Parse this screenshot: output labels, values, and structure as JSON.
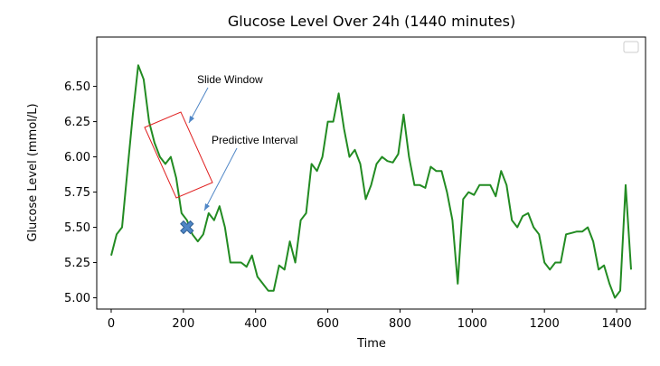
{
  "chart_data": {
    "type": "line",
    "title": "Glucose Level Over 24h (1440 minutes)",
    "xlabel": "Time",
    "ylabel": "Glucose Level (mmol/L)",
    "xlim": [
      -40,
      1480
    ],
    "ylim": [
      4.92,
      6.85
    ],
    "xticks": [
      0,
      200,
      400,
      600,
      800,
      1000,
      1200,
      1400
    ],
    "yticks": [
      5.0,
      5.25,
      5.5,
      5.75,
      6.0,
      6.25,
      6.5
    ],
    "ytick_labels": [
      "5.00",
      "5.25",
      "5.50",
      "5.75",
      "6.00",
      "6.25",
      "6.50"
    ],
    "grid": false,
    "legend": "top-right (empty)",
    "series": [
      {
        "color": "#228B22",
        "x": [
          0,
          15,
          30,
          45,
          60,
          75,
          90,
          105,
          120,
          135,
          150,
          165,
          180,
          195,
          210,
          225,
          240,
          255,
          270,
          285,
          300,
          315,
          330,
          345,
          360,
          375,
          390,
          405,
          420,
          435,
          450,
          465,
          480,
          495,
          510,
          525,
          540,
          555,
          570,
          585,
          600,
          615,
          630,
          645,
          660,
          675,
          690,
          705,
          720,
          735,
          750,
          765,
          780,
          795,
          810,
          825,
          840,
          855,
          870,
          885,
          900,
          915,
          930,
          945,
          960,
          975,
          990,
          1005,
          1020,
          1035,
          1050,
          1065,
          1080,
          1095,
          1110,
          1125,
          1140,
          1155,
          1170,
          1185,
          1200,
          1215,
          1230,
          1245,
          1260,
          1275,
          1290,
          1305,
          1320,
          1335,
          1350,
          1365,
          1380,
          1395,
          1410,
          1425,
          1440
        ],
        "y": [
          5.3,
          5.45,
          5.5,
          5.9,
          6.3,
          6.65,
          6.55,
          6.25,
          6.1,
          6.0,
          5.95,
          6.0,
          5.85,
          5.6,
          5.55,
          5.45,
          5.4,
          5.45,
          5.6,
          5.55,
          5.65,
          5.5,
          5.25,
          5.25,
          5.25,
          5.22,
          5.3,
          5.15,
          5.1,
          5.05,
          5.05,
          5.23,
          5.2,
          5.4,
          5.25,
          5.55,
          5.6,
          5.95,
          5.9,
          6.0,
          6.25,
          6.25,
          6.45,
          6.2,
          6.0,
          6.05,
          5.95,
          5.7,
          5.8,
          5.95,
          6.0,
          5.97,
          5.96,
          6.02,
          6.3,
          6.0,
          5.8,
          5.8,
          5.78,
          5.93,
          5.9,
          5.9,
          5.75,
          5.55,
          5.1,
          5.7,
          5.75,
          5.73,
          5.8,
          5.8,
          5.8,
          5.72,
          5.9,
          5.8,
          5.55,
          5.5,
          5.58,
          5.6,
          5.5,
          5.45,
          5.25,
          5.2,
          5.25,
          5.25,
          5.45,
          5.46,
          5.47,
          5.47,
          5.5,
          5.4,
          5.2,
          5.23,
          5.1,
          5.0,
          5.05,
          5.8,
          5.2
        ]
      }
    ],
    "annotations": [
      {
        "text": "Slide Window",
        "target": "slide-window-box"
      },
      {
        "text": "Predictive Interval",
        "target": "predicted-point"
      }
    ],
    "slide_window": {
      "x_start": 75,
      "x_end": 200,
      "y_low": 5.73,
      "y_high": 6.1,
      "color": "#e02020"
    },
    "predicted_point": {
      "x": 210,
      "y": 5.5,
      "color": "#4f86c6"
    }
  }
}
